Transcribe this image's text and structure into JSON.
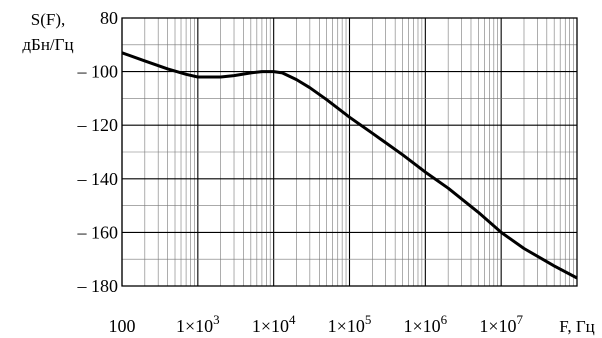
{
  "chart_data": {
    "type": "line",
    "title": "",
    "ylabel_line1": "S(F),",
    "ylabel_line2": "дБн/Гц",
    "xlabel": "F, Гц",
    "xscale": "log",
    "xlim": [
      100,
      100000000
    ],
    "ylim": [
      -180,
      -80
    ],
    "grid": true,
    "legend": "none",
    "y_ticks": [
      {
        "value": -80,
        "label": "80"
      },
      {
        "value": -100,
        "label": "– 100"
      },
      {
        "value": -120,
        "label": "– 120"
      },
      {
        "value": -140,
        "label": "– 140"
      },
      {
        "value": -160,
        "label": "– 160"
      },
      {
        "value": -180,
        "label": "– 180"
      }
    ],
    "x_ticks": [
      {
        "value": 100,
        "base": "100",
        "exp": ""
      },
      {
        "value": 1000,
        "base": "1×10",
        "exp": "3"
      },
      {
        "value": 10000,
        "base": "1×10",
        "exp": "4"
      },
      {
        "value": 100000,
        "base": "1×10",
        "exp": "5"
      },
      {
        "value": 1000000,
        "base": "1×10",
        "exp": "6"
      },
      {
        "value": 10000000,
        "base": "1×10",
        "exp": "7"
      }
    ],
    "series": [
      {
        "color": "#000000",
        "x": [
          100,
          200,
          400,
          700,
          1000,
          1500,
          2000,
          3000,
          5000,
          7000,
          10000,
          13000,
          20000,
          30000,
          50000,
          100000,
          200000,
          500000,
          1000000,
          2000000,
          5000000,
          10000000,
          20000000,
          50000000,
          100000000
        ],
        "y": [
          -93,
          -96,
          -99,
          -101,
          -102,
          -102,
          -102,
          -101.5,
          -100.5,
          -100,
          -100,
          -100.5,
          -103,
          -106,
          -110.5,
          -117,
          -123,
          -131,
          -137.5,
          -143.5,
          -152.5,
          -160,
          -166,
          -172.5,
          -177
        ]
      }
    ]
  }
}
